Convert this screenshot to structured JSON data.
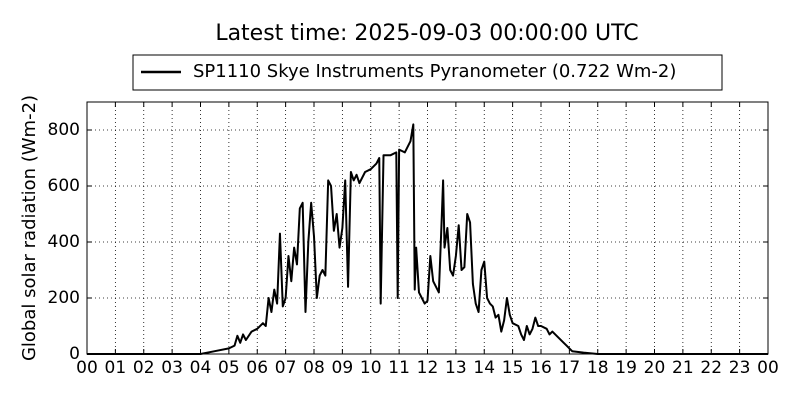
{
  "chart_data": {
    "type": "line",
    "title": "Latest time: 2025-09-03 00:00:00 UTC",
    "ylabel": "Global solar radiation (Wm-2)",
    "xlim": [
      0,
      24
    ],
    "ylim": [
      0,
      900
    ],
    "xticks": [
      {
        "value": 0,
        "label": "00"
      },
      {
        "value": 1,
        "label": "01"
      },
      {
        "value": 2,
        "label": "02"
      },
      {
        "value": 3,
        "label": "03"
      },
      {
        "value": 4,
        "label": "04"
      },
      {
        "value": 5,
        "label": "05"
      },
      {
        "value": 6,
        "label": "06"
      },
      {
        "value": 7,
        "label": "07"
      },
      {
        "value": 8,
        "label": "08"
      },
      {
        "value": 9,
        "label": "09"
      },
      10,
      11,
      12,
      13,
      14,
      15,
      16,
      17,
      18,
      19,
      20,
      21,
      22,
      23,
      {
        "value": 24,
        "label": "00"
      }
    ],
    "yticks": [
      0,
      200,
      400,
      600,
      800
    ],
    "grid": true,
    "legend": "top",
    "x": [
      0,
      4,
      4.5,
      5,
      5.2,
      5.3,
      5.4,
      5.5,
      5.6,
      5.8,
      6,
      6.2,
      6.3,
      6.4,
      6.5,
      6.6,
      6.7,
      6.8,
      6.9,
      7,
      7.1,
      7.2,
      7.3,
      7.4,
      7.5,
      7.6,
      7.7,
      7.8,
      7.9,
      8,
      8.1,
      8.2,
      8.3,
      8.4,
      8.5,
      8.6,
      8.7,
      8.8,
      8.9,
      9,
      9.1,
      9.2,
      9.3,
      9.4,
      9.5,
      9.6,
      9.8,
      10,
      10.2,
      10.3,
      10.35,
      10.45,
      10.7,
      10.9,
      10.95,
      11,
      11.2,
      11.4,
      11.5,
      11.55,
      11.6,
      11.7,
      11.9,
      12,
      12.1,
      12.2,
      12.3,
      12.4,
      12.5,
      12.55,
      12.6,
      12.7,
      12.8,
      12.9,
      13,
      13.1,
      13.2,
      13.3,
      13.4,
      13.5,
      13.6,
      13.7,
      13.8,
      13.9,
      14,
      14.1,
      14.2,
      14.3,
      14.4,
      14.5,
      14.6,
      14.7,
      14.8,
      14.9,
      15,
      15.2,
      15.3,
      15.4,
      15.5,
      15.6,
      15.7,
      15.8,
      15.9,
      16,
      16.2,
      16.3,
      16.4,
      16.6,
      16.8,
      16.9,
      17,
      17.1,
      17.5,
      18,
      24
    ],
    "series": [
      {
        "name": "SP1110 Skye Instruments Pyranometer (0.722 Wm-2)",
        "color": "#000000",
        "values": [
          0,
          0,
          10,
          20,
          30,
          65,
          40,
          70,
          50,
          80,
          90,
          110,
          100,
          200,
          150,
          230,
          180,
          430,
          170,
          200,
          350,
          260,
          380,
          320,
          520,
          540,
          150,
          400,
          540,
          420,
          200,
          280,
          300,
          280,
          620,
          600,
          440,
          500,
          380,
          450,
          620,
          240,
          650,
          620,
          640,
          610,
          650,
          660,
          680,
          700,
          180,
          710,
          710,
          720,
          200,
          730,
          720,
          760,
          820,
          230,
          380,
          220,
          180,
          190,
          350,
          260,
          240,
          220,
          480,
          620,
          380,
          450,
          300,
          280,
          350,
          460,
          300,
          310,
          500,
          470,
          250,
          180,
          150,
          300,
          330,
          200,
          180,
          170,
          130,
          140,
          80,
          120,
          200,
          140,
          110,
          100,
          70,
          50,
          100,
          70,
          90,
          130,
          100,
          100,
          90,
          70,
          80,
          60,
          40,
          30,
          20,
          10,
          5,
          0,
          0
        ]
      }
    ]
  }
}
